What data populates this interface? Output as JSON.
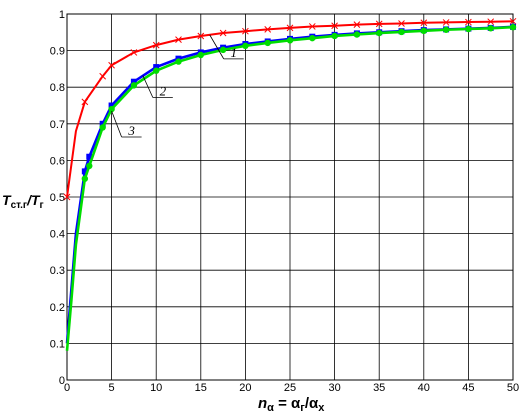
{
  "chart_data": {
    "type": "line",
    "xlabel": {
      "main": "n",
      "sub": "α",
      "eq": " = α",
      "sub2": "г",
      "slash": "/α",
      "sub3": "х"
    },
    "ylabel": {
      "main1": "T",
      "sub1": "ст.г",
      "slash": "/T",
      "sub2": "г"
    },
    "xlim": [
      0,
      50
    ],
    "ylim": [
      0,
      1
    ],
    "x_ticks": [
      0,
      5,
      10,
      15,
      20,
      25,
      30,
      35,
      40,
      45,
      50
    ],
    "y_ticks": [
      0,
      0.1,
      0.2,
      0.3,
      0.4,
      0.5,
      0.6,
      0.7,
      0.8,
      0.9,
      1
    ],
    "x_tick_labels": [
      "0",
      "5",
      "10",
      "15",
      "20",
      "25",
      "30",
      "35",
      "40",
      "45",
      "50"
    ],
    "y_tick_labels": [
      "0",
      "0.1",
      "0.2",
      "0.3",
      "0.4",
      "0.5",
      "0.6",
      "0.7",
      "0.8",
      "0.9",
      "1"
    ],
    "grid": true,
    "series": [
      {
        "name": "1",
        "color": "#ff0000",
        "marker": "x",
        "x": [
          0,
          1,
          2,
          4,
          5,
          7.5,
          10,
          12.5,
          15,
          17.5,
          20,
          22.5,
          25,
          27.5,
          30,
          32.5,
          35,
          37.5,
          40,
          42.5,
          45,
          47.5,
          50
        ],
        "y": [
          0.5,
          0.68,
          0.76,
          0.83,
          0.86,
          0.895,
          0.915,
          0.93,
          0.94,
          0.948,
          0.953,
          0.958,
          0.962,
          0.966,
          0.968,
          0.971,
          0.973,
          0.974,
          0.976,
          0.977,
          0.978,
          0.979,
          0.98
        ]
      },
      {
        "name": "2",
        "color": "#0000ff",
        "marker": "square",
        "x": [
          0,
          0.5,
          1,
          2,
          2.5,
          4,
          5,
          7.5,
          10,
          12.5,
          15,
          17.5,
          20,
          22.5,
          25,
          27.5,
          30,
          32.5,
          35,
          37.5,
          40,
          42.5,
          45,
          47.5,
          50
        ],
        "y": [
          0.1,
          0.25,
          0.4,
          0.57,
          0.61,
          0.7,
          0.75,
          0.815,
          0.855,
          0.878,
          0.895,
          0.908,
          0.918,
          0.925,
          0.932,
          0.938,
          0.943,
          0.947,
          0.95,
          0.953,
          0.956,
          0.958,
          0.96,
          0.962,
          0.965
        ]
      },
      {
        "name": "3",
        "color": "#00dd00",
        "marker": "circle",
        "x": [
          0,
          0.5,
          1,
          2,
          2.5,
          4,
          5,
          7.5,
          10,
          12.5,
          15,
          17.5,
          20,
          22.5,
          25,
          27.5,
          30,
          32.5,
          35,
          37.5,
          40,
          42.5,
          45,
          47.5,
          50
        ],
        "y": [
          0.08,
          0.22,
          0.37,
          0.55,
          0.585,
          0.69,
          0.74,
          0.805,
          0.845,
          0.87,
          0.888,
          0.902,
          0.913,
          0.921,
          0.928,
          0.934,
          0.94,
          0.944,
          0.948,
          0.951,
          0.954,
          0.957,
          0.959,
          0.961,
          0.964
        ]
      }
    ],
    "curve_labels": [
      {
        "text": "1",
        "series": 0,
        "point_x": 16.0,
        "point_y": 0.943
      },
      {
        "text": "2",
        "series": 1,
        "point_x": 8.5,
        "point_y": 0.832
      },
      {
        "text": "3",
        "series": 2,
        "point_x": 5.0,
        "point_y": 0.735
      }
    ]
  }
}
